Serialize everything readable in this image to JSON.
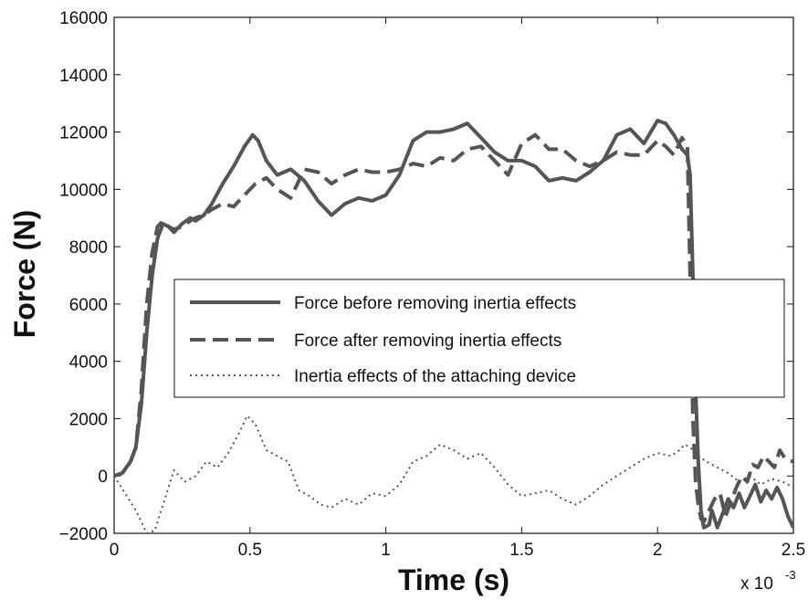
{
  "chart_data": {
    "type": "line",
    "xlabel": "Time (s)",
    "ylabel": "Force (N)",
    "x_multiplier": "x 10",
    "x_multiplier_exponent": "-3",
    "xlim": [
      0,
      2.5
    ],
    "ylim": [
      -2000,
      16000
    ],
    "x_ticks": [
      "0",
      "0.5",
      "1",
      "1.5",
      "2",
      "2.5"
    ],
    "y_ticks": [
      "−2000",
      "0",
      "2000",
      "4000",
      "6000",
      "8000",
      "10000",
      "12000",
      "14000",
      "16000"
    ],
    "grid": false,
    "legend_position": "center",
    "series": [
      {
        "name": "Force before removing inertia effects",
        "style": "solid",
        "color": "#555555",
        "x": [
          0,
          0.03,
          0.06,
          0.08,
          0.1,
          0.12,
          0.14,
          0.16,
          0.18,
          0.2,
          0.22,
          0.25,
          0.28,
          0.3,
          0.33,
          0.36,
          0.4,
          0.44,
          0.48,
          0.51,
          0.53,
          0.56,
          0.6,
          0.65,
          0.7,
          0.75,
          0.8,
          0.85,
          0.9,
          0.95,
          1.0,
          1.05,
          1.1,
          1.15,
          1.2,
          1.25,
          1.3,
          1.35,
          1.4,
          1.45,
          1.5,
          1.55,
          1.6,
          1.65,
          1.7,
          1.75,
          1.8,
          1.85,
          1.9,
          1.95,
          2.0,
          2.03,
          2.06,
          2.09,
          2.11,
          2.12,
          2.13,
          2.14,
          2.15,
          2.16,
          2.17,
          2.19,
          2.2,
          2.22,
          2.24,
          2.26,
          2.28,
          2.3,
          2.32,
          2.34,
          2.36,
          2.38,
          2.4,
          2.42,
          2.44,
          2.46,
          2.48,
          2.5
        ],
        "y": [
          0,
          100,
          500,
          1000,
          2500,
          5000,
          7000,
          8300,
          8800,
          8700,
          8500,
          8800,
          9000,
          8900,
          9100,
          9500,
          10200,
          10800,
          11500,
          11900,
          11700,
          11000,
          10500,
          10700,
          10300,
          9600,
          9100,
          9500,
          9700,
          9600,
          9800,
          10500,
          11700,
          12000,
          12000,
          12100,
          12300,
          11800,
          11300,
          11000,
          11000,
          10800,
          10300,
          10400,
          10300,
          10600,
          11000,
          11900,
          12100,
          11600,
          12400,
          12300,
          11900,
          11400,
          11200,
          10500,
          7000,
          3000,
          500,
          -1200,
          -1800,
          -1700,
          -1200,
          -1800,
          -1300,
          -800,
          -1100,
          -600,
          -1100,
          -700,
          -300,
          -900,
          -500,
          -800,
          -400,
          -800,
          -1400,
          -1800
        ]
      },
      {
        "name": "Force after removing inertia effects",
        "style": "dashed",
        "color": "#555555",
        "x": [
          0,
          0.03,
          0.06,
          0.08,
          0.1,
          0.12,
          0.14,
          0.16,
          0.18,
          0.2,
          0.22,
          0.25,
          0.28,
          0.3,
          0.33,
          0.36,
          0.4,
          0.44,
          0.48,
          0.52,
          0.56,
          0.6,
          0.65,
          0.7,
          0.75,
          0.8,
          0.85,
          0.9,
          0.95,
          1.0,
          1.05,
          1.1,
          1.15,
          1.2,
          1.25,
          1.3,
          1.35,
          1.4,
          1.45,
          1.5,
          1.55,
          1.6,
          1.65,
          1.7,
          1.75,
          1.8,
          1.85,
          1.9,
          1.95,
          2.0,
          2.03,
          2.06,
          2.09,
          2.11,
          2.12,
          2.13,
          2.14,
          2.15,
          2.16,
          2.17,
          2.19,
          2.21,
          2.23,
          2.25,
          2.27,
          2.29,
          2.31,
          2.33,
          2.35,
          2.37,
          2.39,
          2.41,
          2.43,
          2.45,
          2.47,
          2.5
        ],
        "y": [
          0,
          100,
          500,
          1000,
          3000,
          6000,
          7800,
          8700,
          8900,
          8700,
          8600,
          8700,
          8900,
          9000,
          9100,
          9300,
          9500,
          9400,
          9800,
          10200,
          10400,
          10000,
          9700,
          10700,
          10600,
          10200,
          10500,
          10700,
          10600,
          10600,
          10700,
          10900,
          10800,
          11100,
          11000,
          11400,
          11500,
          11000,
          10500,
          11600,
          11900,
          11400,
          11400,
          11000,
          10800,
          11000,
          11300,
          11200,
          11200,
          11700,
          11500,
          11200,
          11800,
          11500,
          7000,
          2000,
          -200,
          -1000,
          -1500,
          -1600,
          -1200,
          -800,
          -600,
          -1400,
          -900,
          -400,
          0,
          -200,
          400,
          300,
          700,
          500,
          300,
          900,
          600,
          500
        ]
      },
      {
        "name": "Inertia effects of the attaching device",
        "style": "dotted",
        "color": "#555555",
        "x": [
          0,
          0.04,
          0.08,
          0.12,
          0.15,
          0.18,
          0.22,
          0.26,
          0.3,
          0.34,
          0.38,
          0.42,
          0.46,
          0.49,
          0.52,
          0.56,
          0.6,
          0.64,
          0.68,
          0.72,
          0.76,
          0.8,
          0.85,
          0.9,
          0.95,
          1.0,
          1.05,
          1.1,
          1.15,
          1.2,
          1.25,
          1.3,
          1.35,
          1.4,
          1.45,
          1.5,
          1.55,
          1.6,
          1.65,
          1.7,
          1.75,
          1.8,
          1.85,
          1.9,
          1.95,
          2.0,
          2.05,
          2.08,
          2.1,
          2.12,
          2.15,
          2.18,
          2.22,
          2.26,
          2.3,
          2.34,
          2.38,
          2.42,
          2.46,
          2.5
        ],
        "y": [
          0,
          -600,
          -1200,
          -2000,
          -1900,
          -1000,
          200,
          -200,
          0,
          500,
          300,
          800,
          1500,
          2100,
          1800,
          900,
          700,
          500,
          -500,
          -700,
          -1000,
          -1100,
          -800,
          -1000,
          -600,
          -700,
          -300,
          500,
          700,
          1100,
          900,
          600,
          800,
          300,
          -300,
          -700,
          -600,
          -500,
          -800,
          -1000,
          -700,
          -300,
          0,
          300,
          600,
          800,
          700,
          900,
          1100,
          1000,
          700,
          500,
          300,
          100,
          -200,
          0,
          -300,
          -100,
          -200,
          -400
        ]
      }
    ]
  }
}
